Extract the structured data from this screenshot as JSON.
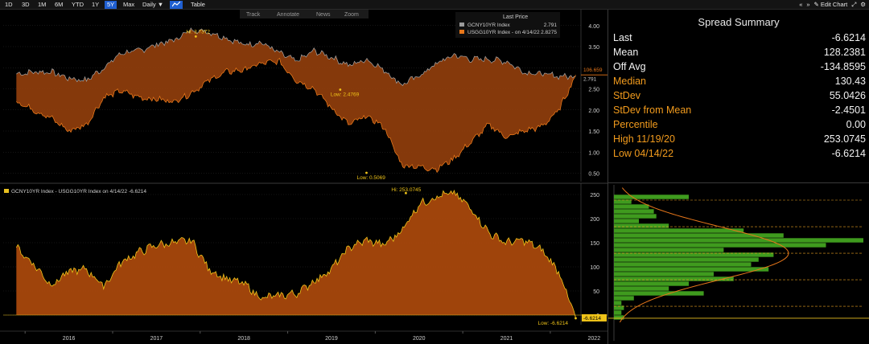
{
  "toolbar": {
    "periods": [
      "1D",
      "3D",
      "1M",
      "6M",
      "YTD",
      "1Y",
      "5Y",
      "Max"
    ],
    "active_period": "5Y",
    "frequency": "Daily",
    "table_label": "Table",
    "edit_chart": "Edit Chart"
  },
  "upper_tools": [
    "Track",
    "Annotate",
    "News",
    "Zoom"
  ],
  "legend_top": {
    "header": "Last Price",
    "items": [
      {
        "label": "GCNY10YR Index",
        "value": "2.791",
        "color": "#9a9a9a"
      },
      {
        "label": "USGG10YR Index -  on 4/14/22",
        "value": "2.8275",
        "color": "#e8771a"
      }
    ]
  },
  "legend_bottom": {
    "label": "GCNY10YR Index - USGG10YR Index on 4/14/22 -6.6214",
    "color": "#e8c020"
  },
  "colors": {
    "orange": "#e8771a",
    "gold": "#f0c419",
    "green": "#3f9b1e",
    "orange_text": "#f29b1d"
  },
  "x_axis_labels": [
    "2016",
    "2017",
    "2018",
    "2019",
    "2020",
    "2021",
    "2022"
  ],
  "spread_summary": {
    "title": "Spread Summary",
    "rows": [
      {
        "label": "Last",
        "value": "-6.6214",
        "style": "w"
      },
      {
        "label": "Mean",
        "value": "128.2381",
        "style": "w"
      },
      {
        "label": "Off Avg",
        "value": "-134.8595",
        "style": "w"
      },
      {
        "label": "Median",
        "value": "130.43",
        "style": "o"
      },
      {
        "label": "StDev",
        "value": "55.0426",
        "style": "o"
      },
      {
        "label": "StDev from Mean",
        "value": "-2.4501",
        "style": "o"
      },
      {
        "label": "Percentile",
        "value": "0.00",
        "style": "o"
      },
      {
        "label": "High 11/19/20",
        "value": "253.0745",
        "style": "o"
      },
      {
        "label": "Low 04/14/22",
        "value": "-6.6214",
        "style": "o"
      }
    ]
  },
  "chart_data": [
    {
      "type": "area",
      "series": [
        {
          "name": "GCNY10YR Index",
          "last": 2.791,
          "x": [
            2015.9,
            2016.1,
            2016.3,
            2016.5,
            2016.7,
            2016.9,
            2017.1,
            2017.3,
            2017.5,
            2017.7,
            2017.9,
            2018.1,
            2018.3,
            2018.5,
            2018.7,
            2018.9,
            2019.1,
            2019.3,
            2019.5,
            2019.7,
            2019.9,
            2020.1,
            2020.3,
            2020.5,
            2020.7,
            2020.9,
            2021.1,
            2021.3,
            2021.5,
            2021.7,
            2021.9,
            2022.1,
            2022.29
          ],
          "values": [
            2.85,
            2.9,
            2.9,
            2.75,
            2.7,
            3.0,
            3.35,
            3.4,
            3.55,
            3.65,
            3.9,
            3.85,
            3.7,
            3.55,
            3.6,
            3.35,
            3.15,
            3.4,
            3.25,
            3.05,
            3.2,
            2.95,
            2.6,
            2.8,
            3.1,
            3.3,
            3.2,
            3.2,
            3.15,
            2.9,
            2.85,
            2.8,
            2.791
          ]
        },
        {
          "name": "USGG10YR Index",
          "last": 2.8275,
          "x": [
            2015.9,
            2016.1,
            2016.3,
            2016.5,
            2016.7,
            2016.9,
            2017.1,
            2017.3,
            2017.5,
            2017.7,
            2017.9,
            2018.1,
            2018.3,
            2018.5,
            2018.7,
            2018.9,
            2019.1,
            2019.3,
            2019.5,
            2019.7,
            2019.9,
            2020.1,
            2020.3,
            2020.5,
            2020.7,
            2020.9,
            2021.1,
            2021.3,
            2021.5,
            2021.7,
            2021.9,
            2022.1,
            2022.29
          ],
          "values": [
            2.2,
            2.0,
            1.8,
            1.5,
            1.65,
            2.3,
            2.45,
            2.3,
            2.25,
            2.2,
            2.4,
            2.7,
            2.9,
            2.95,
            3.1,
            3.15,
            2.7,
            2.5,
            2.05,
            1.65,
            1.85,
            1.6,
            0.7,
            0.65,
            0.6,
            0.85,
            1.25,
            1.65,
            1.35,
            1.5,
            1.6,
            2.0,
            2.8275
          ]
        }
      ],
      "annotations": [
        {
          "text": "Hi: 3.7372"
        },
        {
          "text": "Low: 2.4769"
        },
        {
          "text": "Low: 0.5069"
        },
        {
          "text": "106.659"
        }
      ],
      "y_ticks": [
        0.5,
        1.0,
        1.5,
        2.0,
        2.5,
        3.0,
        3.5,
        4.0
      ],
      "y_tick_labels": [
        "0.50",
        "1.00",
        "1.50",
        "2.00",
        "2.50",
        "3.00",
        "3.50",
        "4.00"
      ],
      "ylim": [
        0.3,
        4.3
      ],
      "xlim": [
        2015.75,
        2022.35
      ]
    },
    {
      "type": "area",
      "series": [
        {
          "name": "GCNY10YR Index - USGG10YR Index",
          "last": -6.6214,
          "x": [
            2015.9,
            2016.1,
            2016.3,
            2016.5,
            2016.7,
            2016.9,
            2017.1,
            2017.3,
            2017.5,
            2017.7,
            2017.9,
            2018.1,
            2018.3,
            2018.5,
            2018.7,
            2018.9,
            2019.1,
            2019.3,
            2019.5,
            2019.7,
            2019.9,
            2020.1,
            2020.3,
            2020.5,
            2020.7,
            2020.9,
            2021.1,
            2021.3,
            2021.5,
            2021.7,
            2021.9,
            2022.1,
            2022.29
          ],
          "values": [
            140,
            105,
            62,
            90,
            95,
            60,
            110,
            130,
            145,
            150,
            155,
            95,
            75,
            65,
            35,
            40,
            45,
            70,
            95,
            140,
            155,
            145,
            175,
            230,
            245,
            253.0745,
            220,
            170,
            150,
            155,
            135,
            90,
            -6.6214
          ]
        }
      ],
      "annotations": [
        {
          "text": "Hi: 253.0745"
        },
        {
          "text": "Low: -6.6214"
        },
        {
          "text": "-6.6214"
        }
      ],
      "y_ticks": [
        0,
        50,
        100,
        150,
        200,
        250
      ],
      "ylim": [
        -20,
        270
      ],
      "xlim": [
        2015.75,
        2022.35
      ]
    },
    {
      "type": "bar",
      "orientation": "horizontal",
      "bins": [
        -5,
        5,
        15,
        25,
        35,
        45,
        55,
        65,
        75,
        85,
        95,
        105,
        115,
        125,
        135,
        145,
        155,
        165,
        175,
        185,
        195,
        205,
        215,
        225,
        235,
        245
      ],
      "values": [
        4,
        3,
        4,
        3,
        8,
        36,
        22,
        30,
        48,
        40,
        62,
        55,
        58,
        64,
        44,
        85,
        100,
        68,
        52,
        22,
        10,
        17,
        16,
        14,
        7,
        30
      ],
      "normal_fit": {
        "mean": 128.2381,
        "stdev": 55.0426
      },
      "ylim": [
        -20,
        270
      ]
    }
  ]
}
